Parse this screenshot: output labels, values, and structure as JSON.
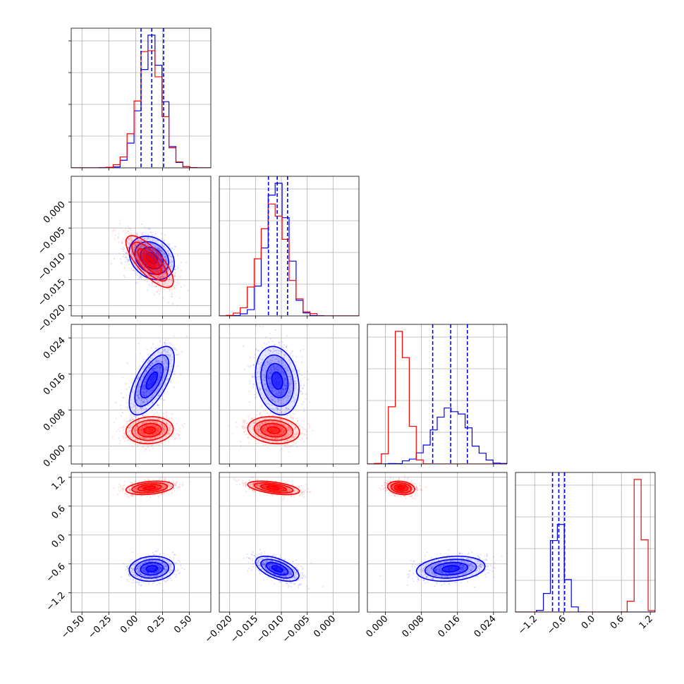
{
  "colors": {
    "series_a": "#0000ff",
    "series_b": "#ff0000",
    "grid": "#b0b0b0",
    "axes": "#000000"
  },
  "chart_data": {
    "type": "corner",
    "grid": true,
    "series": [
      {
        "color": "#0000ff",
        "means": [
          0.15,
          -0.0108,
          0.0145,
          -0.7
        ],
        "sigmas": [
          0.105,
          0.0021,
          0.0038,
          0.13
        ],
        "correlations": [
          [
            0,
            1,
            -0.25
          ],
          [
            0,
            2,
            0.65
          ],
          [
            0,
            3,
            0.1
          ],
          [
            1,
            2,
            -0.2
          ],
          [
            1,
            3,
            -0.55
          ],
          [
            2,
            3,
            0.2
          ]
        ],
        "quantile_lines": [
          [
            0.05,
            0.15,
            0.26
          ],
          [
            -0.0125,
            -0.0108,
            -0.0088
          ],
          [
            0.0105,
            0.0145,
            0.0182
          ],
          [
            -0.83,
            -0.7,
            -0.58
          ]
        ]
      },
      {
        "color": "#ff0000",
        "means": [
          0.13,
          -0.0115,
          0.0035,
          0.98
        ],
        "sigmas": [
          0.11,
          0.0025,
          0.0015,
          0.07
        ],
        "correlations": [
          [
            0,
            1,
            -0.75
          ],
          [
            0,
            2,
            0.1
          ],
          [
            0,
            3,
            0.3
          ],
          [
            1,
            2,
            -0.15
          ],
          [
            1,
            3,
            -0.5
          ],
          [
            2,
            3,
            -0.2
          ]
        ]
      }
    ],
    "panels": [
      {
        "xlim": [
          -0.6,
          0.7
        ]
      },
      {
        "xlim": [
          -0.022,
          0.005
        ],
        "ylim": [
          -0.6,
          0.7
        ]
      },
      {
        "xlim": [
          -0.004,
          0.027
        ],
        "ylim": [
          -0.022,
          0.005
        ]
      },
      {
        "xlim": [
          -1.6,
          1.3
        ],
        "ylim": [
          -0.004,
          0.027
        ]
      }
    ],
    "bottom_tick_labels": [
      [
        "−0.50",
        "−0.25",
        "0.00",
        "0.25",
        "0.50"
      ],
      [
        "−0.020",
        "−0.015",
        "−0.010",
        "−0.005",
        "0.000"
      ],
      [
        "0.000",
        "0.008",
        "0.016",
        "0.024"
      ],
      [
        "−1.2",
        "−0.6",
        "0.0",
        "0.6",
        "1.2"
      ]
    ],
    "bottom_tick_values": [
      [
        -0.5,
        -0.25,
        0.0,
        0.25,
        0.5
      ],
      [
        -0.02,
        -0.015,
        -0.01,
        -0.005,
        0.0
      ],
      [
        0.0,
        0.008,
        0.016,
        0.024
      ],
      [
        -1.2,
        -0.6,
        0.0,
        0.6,
        1.2
      ]
    ],
    "left_tick_labels": [
      [],
      [
        "−0.020",
        "−0.015",
        "−0.010",
        "−0.005",
        "0.000"
      ],
      [
        "0.000",
        "0.008",
        "0.016",
        "0.024"
      ],
      [
        "−1.2",
        "−0.6",
        "0.0",
        "0.6",
        "1.2"
      ]
    ],
    "left_tick_values": [
      [],
      [
        -0.02,
        -0.015,
        -0.01,
        -0.005,
        0.0
      ],
      [
        0.0,
        0.008,
        0.016,
        0.024
      ],
      [
        -1.2,
        -0.6,
        0.0,
        0.6,
        1.2
      ]
    ]
  }
}
